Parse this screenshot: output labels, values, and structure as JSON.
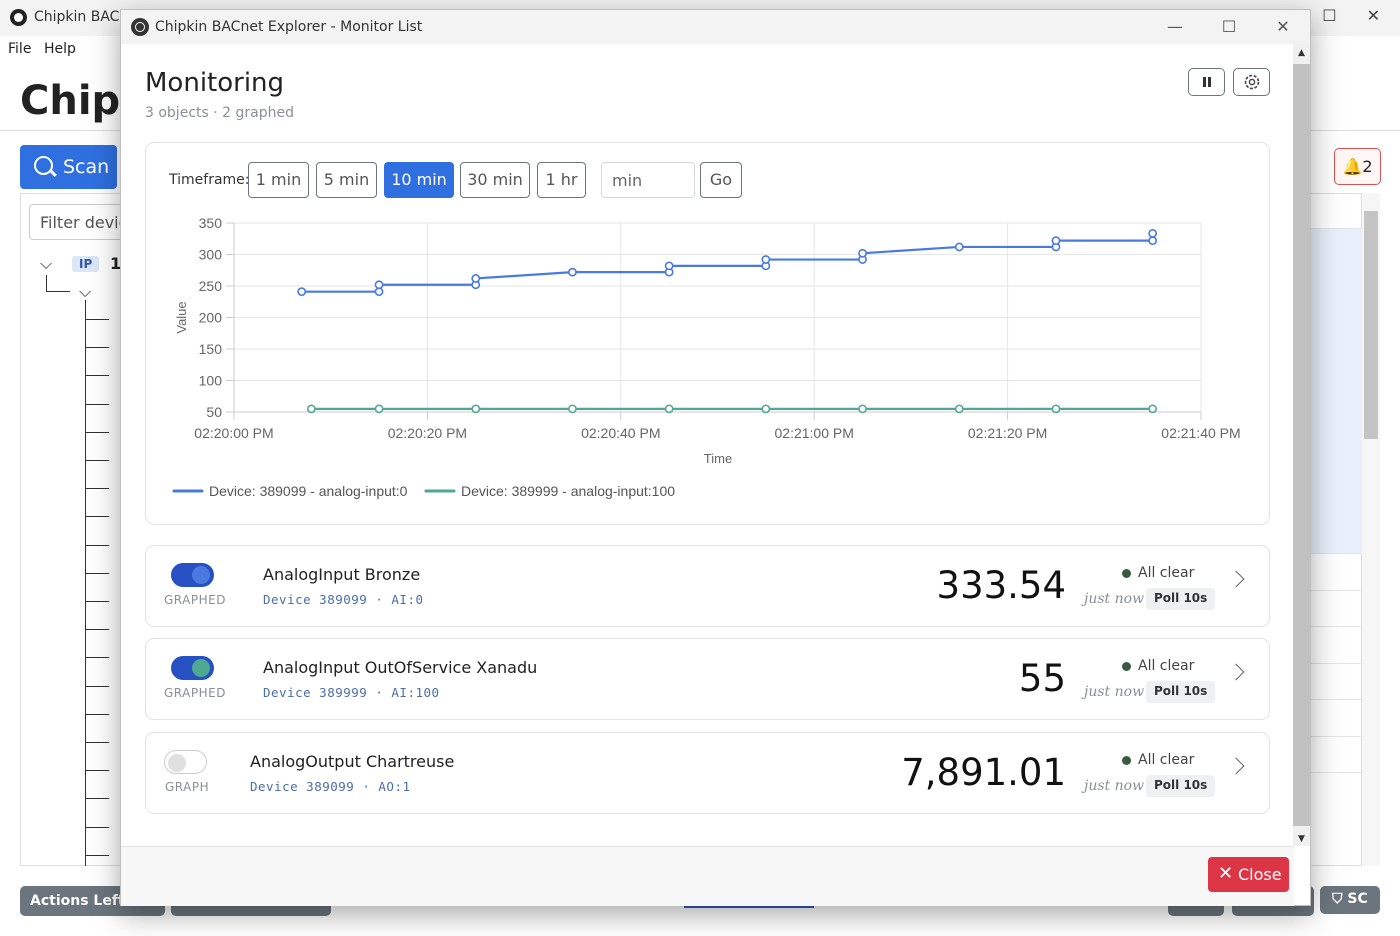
{
  "background_window": {
    "title": "Chipkin BACnet Explorer",
    "menu": [
      "File",
      "Help"
    ],
    "app_heading": "Chipkin BACnet Explorer",
    "scan_label": "Scan",
    "filter_placeholder": "Filter devices",
    "tree_tag": "IP",
    "tree_first": "1",
    "notifications_count": "2",
    "footer_actions_label": "Actions Left:",
    "footer_sc_label": "SC"
  },
  "dialog": {
    "title": "Chipkin BACnet Explorer - Monitor List",
    "heading": "Monitoring",
    "subtitle": "3 objects · 2 graphed",
    "timeframe_label": "Timeframe:",
    "timeframes": [
      {
        "label": "1 min",
        "active": false
      },
      {
        "label": "5 min",
        "active": false
      },
      {
        "label": "10 min",
        "active": true
      },
      {
        "label": "30 min",
        "active": false
      },
      {
        "label": "1 hr",
        "active": false
      }
    ],
    "custom_placeholder": "min",
    "go_label": "Go",
    "close_label": "Close"
  },
  "chart_data": {
    "type": "line",
    "xlabel": "Time",
    "ylabel": "Value",
    "ylim": [
      50,
      350
    ],
    "yticks": [
      "350",
      "300",
      "250",
      "200",
      "150",
      "100",
      "50"
    ],
    "xlim_seconds": [
      0,
      100
    ],
    "xticks": [
      "02:20:00 PM",
      "02:20:20 PM",
      "02:20:40 PM",
      "02:21:00 PM",
      "02:21:20 PM",
      "02:21:40 PM"
    ],
    "legend_position": "bottom-left",
    "grid": true,
    "series": [
      {
        "name": "Device: 389099 - analog-input:0",
        "color": "#4a7ae0",
        "points": [
          [
            "02:20:07 PM",
            241
          ],
          [
            "02:20:15 PM",
            241
          ],
          [
            "02:20:15 PM",
            252
          ],
          [
            "02:20:25 PM",
            252
          ],
          [
            "02:20:25 PM",
            262
          ],
          [
            "02:20:35 PM",
            272
          ],
          [
            "02:20:45 PM",
            272
          ],
          [
            "02:20:45 PM",
            282
          ],
          [
            "02:20:55 PM",
            282
          ],
          [
            "02:20:55 PM",
            292
          ],
          [
            "02:21:05 PM",
            292
          ],
          [
            "02:21:05 PM",
            302
          ],
          [
            "02:21:15 PM",
            312
          ],
          [
            "02:21:25 PM",
            312
          ],
          [
            "02:21:25 PM",
            322
          ],
          [
            "02:21:35 PM",
            322
          ],
          [
            "02:21:35 PM",
            333.54
          ]
        ]
      },
      {
        "name": "Device: 389999 - analog-input:100",
        "color": "#4fa892",
        "points": [
          [
            "02:20:08 PM",
            55
          ],
          [
            "02:20:15 PM",
            55
          ],
          [
            "02:20:25 PM",
            55
          ],
          [
            "02:20:35 PM",
            55
          ],
          [
            "02:20:45 PM",
            55
          ],
          [
            "02:20:55 PM",
            55
          ],
          [
            "02:21:05 PM",
            55
          ],
          [
            "02:21:15 PM",
            55
          ],
          [
            "02:21:25 PM",
            55
          ],
          [
            "02:21:35 PM",
            55
          ]
        ]
      }
    ]
  },
  "objects": [
    {
      "name": "AnalogInput Bronze",
      "device": "Device 389099 · AI:0",
      "value": "333.54",
      "graphed": true,
      "toggle_label": "GRAPHED",
      "knob_color": "#4a7ae0",
      "status": "All clear",
      "updated": "just now",
      "poll": "Poll 10s"
    },
    {
      "name": "AnalogInput OutOfService Xanadu",
      "device": "Device 389999 · AI:100",
      "value": "55",
      "graphed": true,
      "toggle_label": "GRAPHED",
      "knob_color": "#4fa892",
      "status": "All clear",
      "updated": "just now",
      "poll": "Poll 10s"
    },
    {
      "name": "AnalogOutput Chartreuse",
      "device": "Device 389099 · AO:1",
      "value": "7,891.01",
      "graphed": false,
      "toggle_label": "GRAPH",
      "knob_color": "#e0e0e0",
      "status": "All clear",
      "updated": "just now",
      "poll": "Poll 10s"
    }
  ]
}
